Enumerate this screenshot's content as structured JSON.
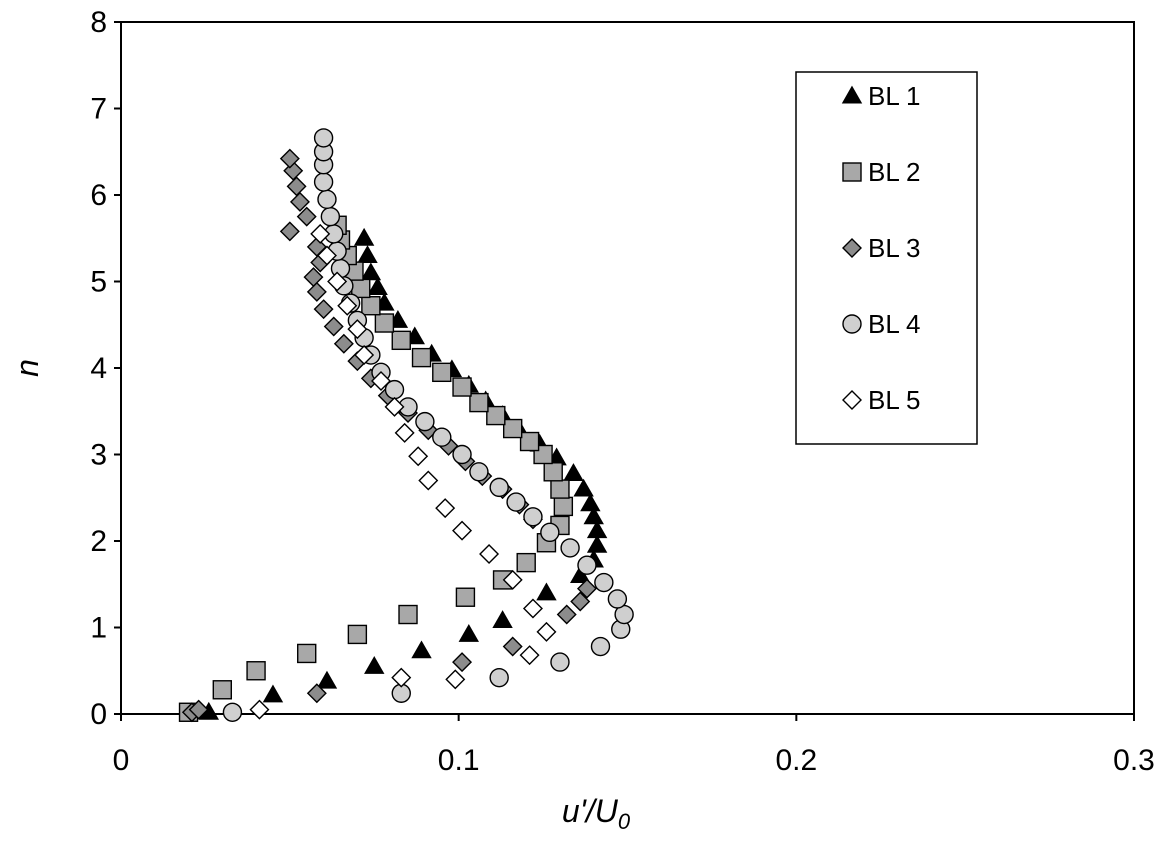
{
  "chart_data": {
    "type": "scatter",
    "title": "",
    "xlabel": "u'/U",
    "xlabel_sub": "0",
    "ylabel": "n",
    "xlim": [
      0,
      0.3
    ],
    "ylim": [
      0,
      8
    ],
    "xticks": [
      0,
      0.1,
      0.2,
      0.3
    ],
    "xtick_labels": [
      "0",
      "0.1",
      "0.2",
      "0.3"
    ],
    "yticks": [
      0,
      1,
      2,
      3,
      4,
      5,
      6,
      7,
      8
    ],
    "ytick_labels": [
      "0",
      "1",
      "2",
      "3",
      "4",
      "5",
      "6",
      "7",
      "8"
    ],
    "grid": false,
    "legend_position": "top-right",
    "series": [
      {
        "name": "BL 1",
        "marker": "triangle",
        "color": "#000000",
        "points": [
          [
            0.026,
            0.02
          ],
          [
            0.045,
            0.22
          ],
          [
            0.061,
            0.38
          ],
          [
            0.075,
            0.55
          ],
          [
            0.089,
            0.73
          ],
          [
            0.103,
            0.92
          ],
          [
            0.113,
            1.08
          ],
          [
            0.126,
            1.4
          ],
          [
            0.136,
            1.6
          ],
          [
            0.14,
            1.78
          ],
          [
            0.141,
            1.95
          ],
          [
            0.141,
            2.12
          ],
          [
            0.14,
            2.28
          ],
          [
            0.139,
            2.43
          ],
          [
            0.137,
            2.6
          ],
          [
            0.134,
            2.78
          ],
          [
            0.129,
            2.96
          ],
          [
            0.124,
            3.12
          ],
          [
            0.118,
            3.28
          ],
          [
            0.113,
            3.45
          ],
          [
            0.108,
            3.62
          ],
          [
            0.103,
            3.8
          ],
          [
            0.098,
            3.98
          ],
          [
            0.092,
            4.16
          ],
          [
            0.087,
            4.36
          ],
          [
            0.082,
            4.55
          ],
          [
            0.078,
            4.75
          ],
          [
            0.076,
            4.93
          ],
          [
            0.074,
            5.1
          ],
          [
            0.073,
            5.3
          ],
          [
            0.072,
            5.5
          ]
        ]
      },
      {
        "name": "BL 2",
        "marker": "square",
        "color": "#a8a8a8",
        "points": [
          [
            0.02,
            0.02
          ],
          [
            0.03,
            0.28
          ],
          [
            0.04,
            0.5
          ],
          [
            0.055,
            0.7
          ],
          [
            0.07,
            0.92
          ],
          [
            0.085,
            1.15
          ],
          [
            0.102,
            1.35
          ],
          [
            0.113,
            1.55
          ],
          [
            0.12,
            1.75
          ],
          [
            0.126,
            1.98
          ],
          [
            0.13,
            2.18
          ],
          [
            0.131,
            2.4
          ],
          [
            0.13,
            2.6
          ],
          [
            0.128,
            2.8
          ],
          [
            0.125,
            3.0
          ],
          [
            0.121,
            3.15
          ],
          [
            0.116,
            3.3
          ],
          [
            0.111,
            3.45
          ],
          [
            0.106,
            3.6
          ],
          [
            0.101,
            3.78
          ],
          [
            0.095,
            3.95
          ],
          [
            0.089,
            4.12
          ],
          [
            0.083,
            4.32
          ],
          [
            0.078,
            4.52
          ],
          [
            0.074,
            4.72
          ],
          [
            0.071,
            4.92
          ],
          [
            0.069,
            5.12
          ],
          [
            0.067,
            5.3
          ],
          [
            0.065,
            5.48
          ],
          [
            0.064,
            5.65
          ]
        ]
      },
      {
        "name": "BL 3",
        "marker": "diamond",
        "color": "#8c8c8c",
        "points": [
          [
            0.021,
            0.02
          ],
          [
            0.023,
            0.05
          ],
          [
            0.058,
            0.24
          ],
          [
            0.101,
            0.6
          ],
          [
            0.116,
            0.78
          ],
          [
            0.132,
            1.15
          ],
          [
            0.136,
            1.3
          ],
          [
            0.138,
            1.45
          ],
          [
            0.122,
            2.25
          ],
          [
            0.118,
            2.42
          ],
          [
            0.113,
            2.6
          ],
          [
            0.107,
            2.75
          ],
          [
            0.102,
            2.92
          ],
          [
            0.097,
            3.1
          ],
          [
            0.091,
            3.28
          ],
          [
            0.085,
            3.48
          ],
          [
            0.079,
            3.68
          ],
          [
            0.074,
            3.88
          ],
          [
            0.07,
            4.08
          ],
          [
            0.066,
            4.28
          ],
          [
            0.063,
            4.48
          ],
          [
            0.06,
            4.68
          ],
          [
            0.058,
            4.88
          ],
          [
            0.057,
            5.05
          ],
          [
            0.059,
            5.22
          ],
          [
            0.058,
            5.4
          ],
          [
            0.05,
            5.58
          ],
          [
            0.055,
            5.75
          ],
          [
            0.053,
            5.92
          ],
          [
            0.052,
            6.1
          ],
          [
            0.051,
            6.28
          ],
          [
            0.05,
            6.42
          ]
        ]
      },
      {
        "name": "BL 4",
        "marker": "circle",
        "color": "#cfcfcf",
        "points": [
          [
            0.033,
            0.02
          ],
          [
            0.083,
            0.24
          ],
          [
            0.112,
            0.42
          ],
          [
            0.13,
            0.6
          ],
          [
            0.142,
            0.78
          ],
          [
            0.148,
            0.98
          ],
          [
            0.149,
            1.15
          ],
          [
            0.147,
            1.33
          ],
          [
            0.143,
            1.52
          ],
          [
            0.138,
            1.72
          ],
          [
            0.133,
            1.92
          ],
          [
            0.127,
            2.1
          ],
          [
            0.122,
            2.28
          ],
          [
            0.117,
            2.45
          ],
          [
            0.112,
            2.62
          ],
          [
            0.106,
            2.8
          ],
          [
            0.101,
            3.0
          ],
          [
            0.095,
            3.2
          ],
          [
            0.09,
            3.38
          ],
          [
            0.085,
            3.55
          ],
          [
            0.081,
            3.75
          ],
          [
            0.077,
            3.95
          ],
          [
            0.074,
            4.15
          ],
          [
            0.072,
            4.35
          ],
          [
            0.07,
            4.55
          ],
          [
            0.068,
            4.75
          ],
          [
            0.066,
            4.95
          ],
          [
            0.065,
            5.15
          ],
          [
            0.064,
            5.35
          ],
          [
            0.063,
            5.55
          ],
          [
            0.062,
            5.75
          ],
          [
            0.061,
            5.95
          ],
          [
            0.06,
            6.15
          ],
          [
            0.06,
            6.35
          ],
          [
            0.06,
            6.5
          ],
          [
            0.06,
            6.66
          ]
        ]
      },
      {
        "name": "BL 5",
        "marker": "diamond",
        "color": "#ffffff",
        "points": [
          [
            0.041,
            0.05
          ],
          [
            0.083,
            0.42
          ],
          [
            0.099,
            0.4
          ],
          [
            0.121,
            0.68
          ],
          [
            0.126,
            0.95
          ],
          [
            0.122,
            1.22
          ],
          [
            0.116,
            1.55
          ],
          [
            0.109,
            1.85
          ],
          [
            0.101,
            2.12
          ],
          [
            0.096,
            2.38
          ],
          [
            0.091,
            2.7
          ],
          [
            0.088,
            2.98
          ],
          [
            0.084,
            3.25
          ],
          [
            0.081,
            3.55
          ],
          [
            0.077,
            3.85
          ],
          [
            0.072,
            4.15
          ],
          [
            0.07,
            4.45
          ],
          [
            0.067,
            4.72
          ],
          [
            0.064,
            5.0
          ],
          [
            0.061,
            5.3
          ],
          [
            0.059,
            5.55
          ]
        ]
      }
    ]
  }
}
